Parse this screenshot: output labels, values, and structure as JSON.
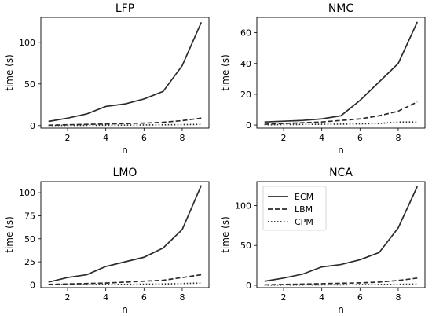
{
  "chart_data": [
    {
      "type": "line",
      "title": "LFP",
      "xlabel": "n",
      "ylabel": "time (s)",
      "x": [
        1,
        2,
        3,
        4,
        5,
        6,
        7,
        8,
        9
      ],
      "xticks": [
        2,
        4,
        6,
        8
      ],
      "xlim": [
        0.6,
        9.4
      ],
      "ylim": [
        -3,
        130
      ],
      "yticks": [
        0,
        50,
        100
      ],
      "series": [
        {
          "name": "ECM",
          "style": "solid",
          "values": [
            5,
            9,
            14,
            23,
            26,
            32,
            41,
            72,
            124
          ]
        },
        {
          "name": "LBM",
          "style": "dashed",
          "values": [
            0.5,
            1,
            1.5,
            2,
            2.5,
            3,
            4,
            6,
            9
          ]
        },
        {
          "name": "CPM",
          "style": "dotted",
          "values": [
            0.2,
            0.3,
            0.4,
            0.5,
            0.6,
            0.8,
            1,
            1.2,
            1.5
          ]
        }
      ]
    },
    {
      "type": "line",
      "title": "NMC",
      "xlabel": "n",
      "ylabel": "time (s)",
      "x": [
        1,
        2,
        3,
        4,
        5,
        6,
        7,
        8,
        9
      ],
      "xticks": [
        2,
        4,
        6,
        8
      ],
      "xlim": [
        0.6,
        9.4
      ],
      "ylim": [
        -2,
        70
      ],
      "yticks": [
        0,
        20,
        40,
        60
      ],
      "series": [
        {
          "name": "ECM",
          "style": "solid",
          "values": [
            2,
            2.5,
            3,
            4,
            6,
            16,
            28,
            40,
            67
          ]
        },
        {
          "name": "LBM",
          "style": "dashed",
          "values": [
            0.5,
            1,
            1.5,
            2,
            3,
            4,
            6,
            9,
            15
          ]
        },
        {
          "name": "CPM",
          "style": "dotted",
          "values": [
            0.2,
            0.3,
            0.4,
            0.5,
            0.6,
            0.8,
            1,
            2,
            2
          ]
        }
      ]
    },
    {
      "type": "line",
      "title": "LMO",
      "xlabel": "n",
      "ylabel": "time (s)",
      "x": [
        1,
        2,
        3,
        4,
        5,
        6,
        7,
        8,
        9
      ],
      "xticks": [
        2,
        4,
        6,
        8
      ],
      "xlim": [
        0.6,
        9.4
      ],
      "ylim": [
        -3,
        112
      ],
      "yticks": [
        0,
        25,
        50,
        75,
        100
      ],
      "series": [
        {
          "name": "ECM",
          "style": "solid",
          "values": [
            3,
            8,
            11,
            20,
            25,
            30,
            40,
            60,
            108
          ]
        },
        {
          "name": "LBM",
          "style": "dashed",
          "values": [
            0.5,
            1,
            1.5,
            2,
            3,
            4,
            5,
            8,
            11
          ]
        },
        {
          "name": "CPM",
          "style": "dotted",
          "values": [
            0.2,
            0.3,
            0.4,
            0.5,
            0.6,
            0.8,
            1,
            1.5,
            2
          ]
        }
      ]
    },
    {
      "type": "line",
      "title": "NCA",
      "xlabel": "n",
      "ylabel": "time (s)",
      "x": [
        1,
        2,
        3,
        4,
        5,
        6,
        7,
        8,
        9
      ],
      "xticks": [
        2,
        4,
        6,
        8
      ],
      "xlim": [
        0.6,
        9.4
      ],
      "ylim": [
        -3,
        130
      ],
      "yticks": [
        0,
        50,
        100
      ],
      "legend": "upper-left",
      "series": [
        {
          "name": "ECM",
          "style": "solid",
          "values": [
            5,
            9,
            14,
            23,
            26,
            32,
            41,
            72,
            124
          ]
        },
        {
          "name": "LBM",
          "style": "dashed",
          "values": [
            0.5,
            1,
            1.5,
            2,
            2.5,
            3,
            4,
            6,
            9
          ]
        },
        {
          "name": "CPM",
          "style": "dotted",
          "values": [
            0.2,
            0.3,
            0.4,
            0.5,
            0.6,
            0.8,
            1,
            1.2,
            1.5
          ]
        }
      ]
    }
  ]
}
